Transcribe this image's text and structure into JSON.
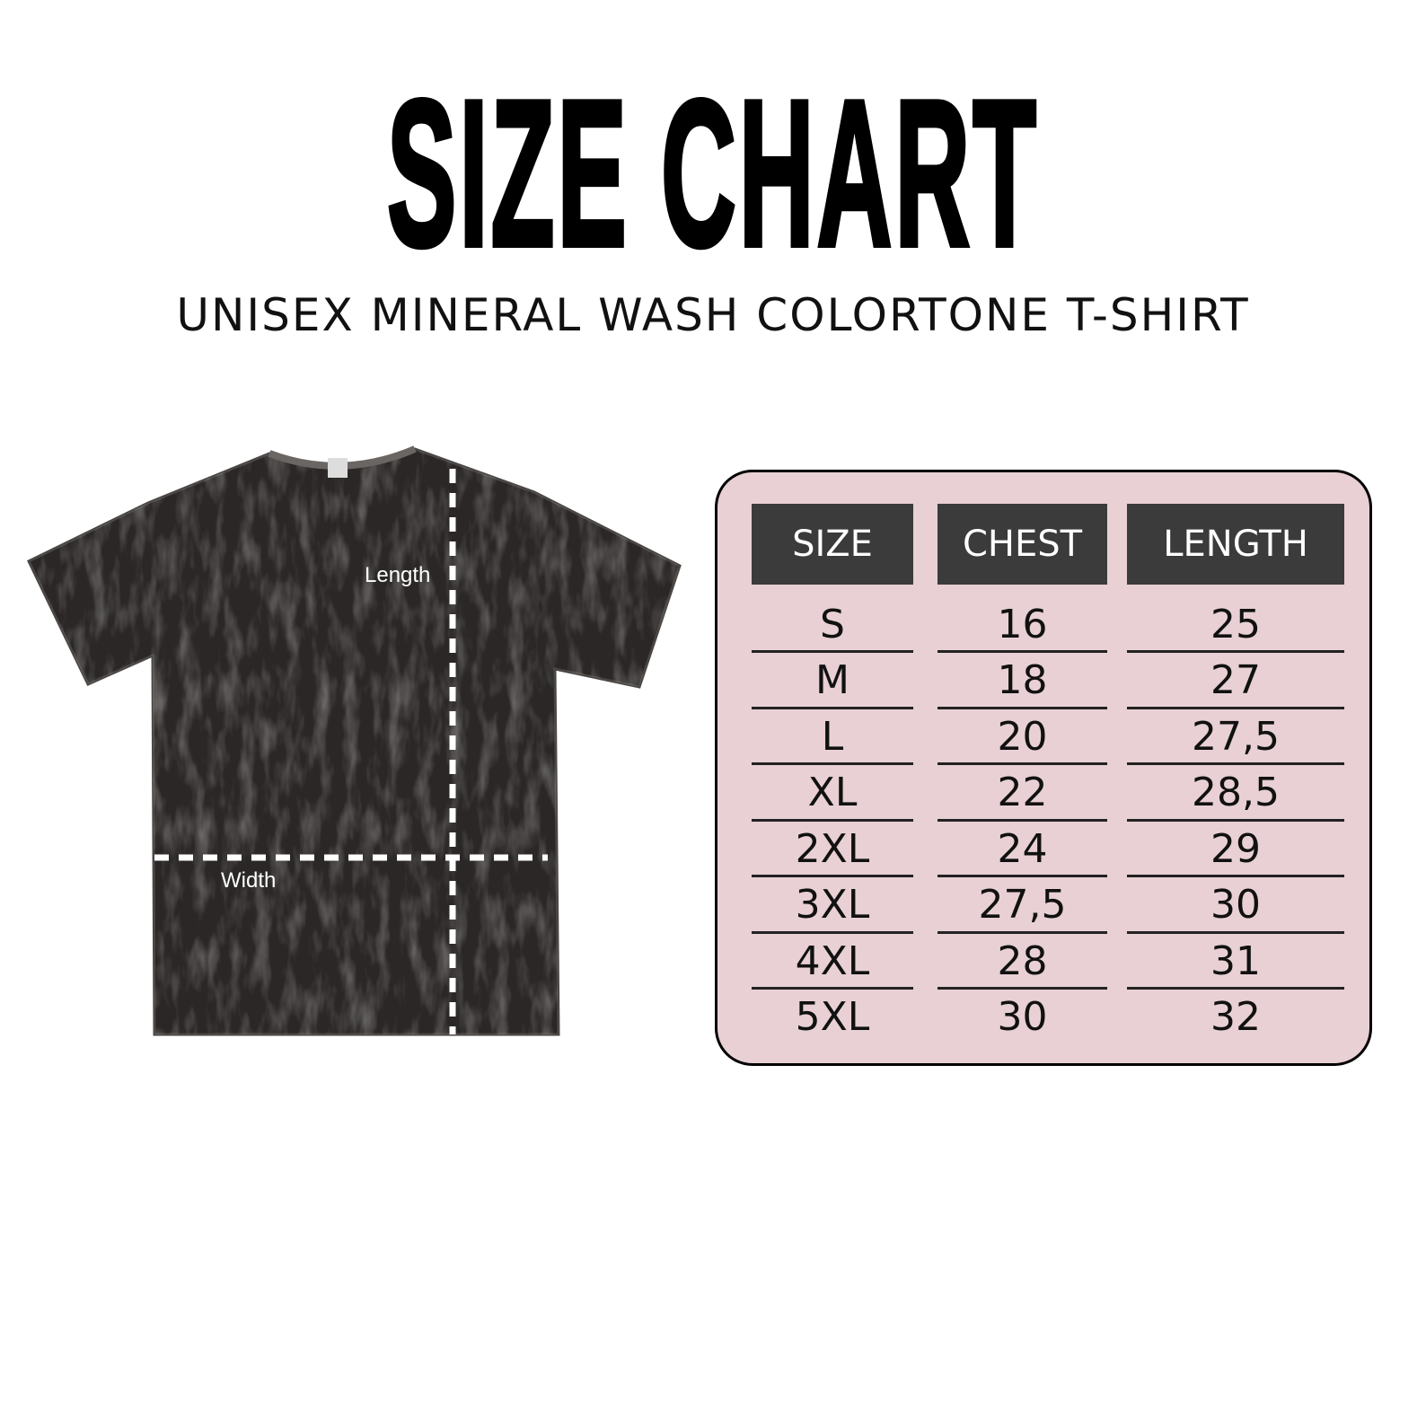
{
  "title": "SIZE CHART",
  "subtitle": "UNISEX MINERAL WASH COLORTONE T-SHIRT",
  "diagram": {
    "length_label": "Length",
    "width_label": "Width",
    "shirt_color": "#2a2726"
  },
  "table": {
    "background": "#e8d0d4",
    "header_color": "#3b3b3b",
    "headers": [
      "SIZE",
      "CHEST",
      "LENGTH"
    ],
    "rows": [
      [
        "S",
        "16",
        "25"
      ],
      [
        "M",
        "18",
        "27"
      ],
      [
        "L",
        "20",
        "27,5"
      ],
      [
        "XL",
        "22",
        "28,5"
      ],
      [
        "2XL",
        "24",
        "29"
      ],
      [
        "3XL",
        "27,5",
        "30"
      ],
      [
        "4XL",
        "28",
        "31"
      ],
      [
        "5XL",
        "30",
        "32"
      ]
    ]
  }
}
